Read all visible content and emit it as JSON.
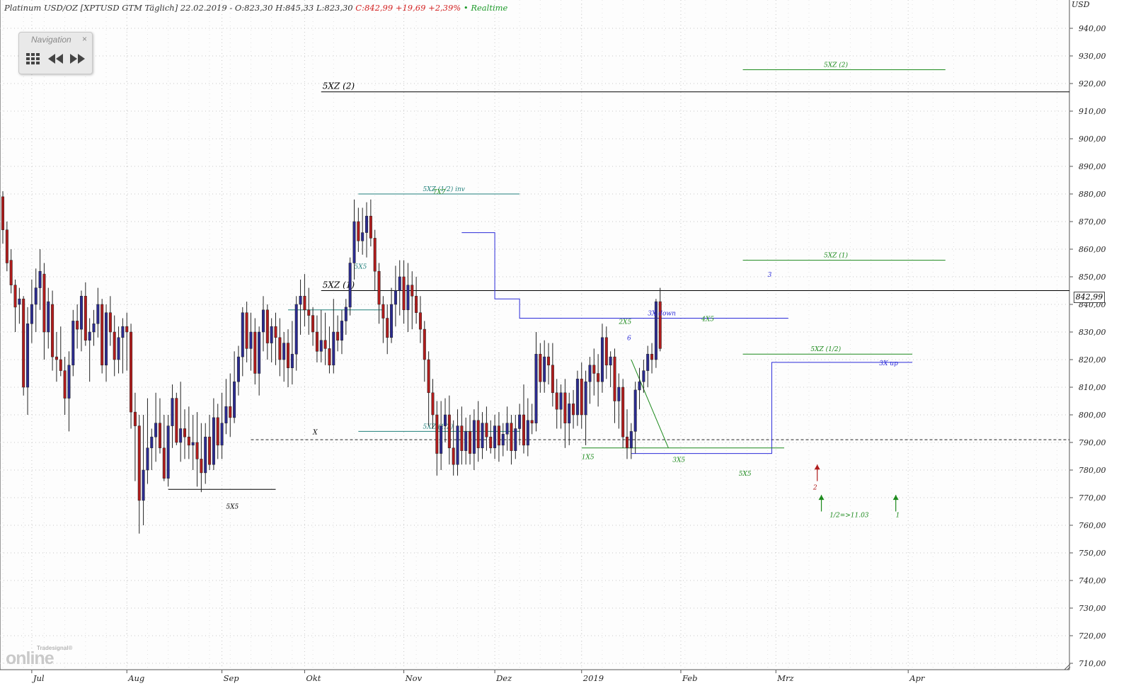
{
  "header": {
    "instrument": "Platinum USD/OZ [XPTUSD GTM Täglich] 22.02.2019 - O:823,30 H:845,33 L:823,30",
    "change": "C:842,99 +19,69 +2,39%",
    "realtime": "• Realtime"
  },
  "navigation": {
    "title": "Navigation",
    "close": "×",
    "buttons": [
      "grid-icon",
      "rewind-icon",
      "fast-forward-icon"
    ]
  },
  "logo": {
    "small": "Tradesignal®",
    "big": "online"
  },
  "colors": {
    "bull": "#2b2b8f",
    "bear": "#b01c1c",
    "green": "#1d8a1d",
    "teal": "#1f7f7a",
    "blue": "#2b2bd9",
    "black": "#000000",
    "grid": "#c8c8c8"
  },
  "chart_data": {
    "type": "candlestick",
    "currency_label": "USD",
    "last_price": "842,99",
    "y_ticks": [
      "710,00",
      "720,00",
      "730,00",
      "740,00",
      "750,00",
      "760,00",
      "770,00",
      "780,00",
      "790,00",
      "800,00",
      "810,00",
      "820,00",
      "830,00",
      "840,00",
      "850,00",
      "860,00",
      "870,00",
      "880,00",
      "890,00",
      "900,00",
      "910,00",
      "920,00",
      "930,00",
      "940,00"
    ],
    "ylim": [
      707,
      949
    ],
    "x_months": [
      {
        "label": "Jul",
        "index": 7
      },
      {
        "label": "Aug",
        "index": 30
      },
      {
        "label": "Sep",
        "index": 53
      },
      {
        "label": "Okt",
        "index": 73
      },
      {
        "label": "Nov",
        "index": 97
      },
      {
        "label": "Dez",
        "index": 119
      },
      {
        "label": "2019",
        "index": 140
      },
      {
        "label": "Feb",
        "index": 164
      },
      {
        "label": "Mrz",
        "index": 187
      },
      {
        "label": "Apr",
        "index": 219
      }
    ],
    "x_range": [
      0,
      258
    ],
    "candles": [
      [
        879,
        881,
        862,
        867
      ],
      [
        867,
        870,
        852,
        855
      ],
      [
        856,
        860,
        844,
        847
      ],
      [
        847,
        849,
        830,
        839
      ],
      [
        840,
        846,
        833,
        842
      ],
      [
        842,
        843,
        807,
        810
      ],
      [
        810,
        839,
        800,
        833
      ],
      [
        833,
        849,
        826,
        840
      ],
      [
        840,
        853,
        830,
        846
      ],
      [
        846,
        860,
        838,
        852
      ],
      [
        851,
        855,
        820,
        830
      ],
      [
        830,
        846,
        824,
        841
      ],
      [
        840,
        845,
        816,
        821
      ],
      [
        821,
        830,
        812,
        820
      ],
      [
        820,
        832,
        814,
        816
      ],
      [
        816,
        821,
        800,
        806
      ],
      [
        806,
        823,
        794,
        818
      ],
      [
        818,
        838,
        814,
        834
      ],
      [
        834,
        840,
        824,
        831
      ],
      [
        831,
        845,
        823,
        843
      ],
      [
        843,
        848,
        825,
        827
      ],
      [
        827,
        835,
        812,
        830
      ],
      [
        830,
        838,
        825,
        833
      ],
      [
        833,
        846,
        828,
        840
      ],
      [
        840,
        842,
        815,
        818
      ],
      [
        818,
        840,
        812,
        837
      ],
      [
        837,
        843,
        825,
        830
      ],
      [
        830,
        836,
        814,
        820
      ],
      [
        820,
        832,
        815,
        828
      ],
      [
        828,
        835,
        815,
        832
      ],
      [
        832,
        837,
        816,
        830
      ],
      [
        830,
        833,
        795,
        801
      ],
      [
        801,
        808,
        776,
        796
      ],
      [
        796,
        800,
        757,
        769
      ],
      [
        769,
        800,
        760,
        780
      ],
      [
        780,
        806,
        775,
        788
      ],
      [
        788,
        795,
        780,
        792
      ],
      [
        792,
        808,
        783,
        797
      ],
      [
        797,
        806,
        786,
        788
      ],
      [
        788,
        800,
        776,
        777
      ],
      [
        777,
        800,
        774,
        796
      ],
      [
        796,
        811,
        788,
        806
      ],
      [
        806,
        808,
        789,
        790
      ],
      [
        790,
        812,
        783,
        795
      ],
      [
        795,
        802,
        784,
        792
      ],
      [
        792,
        803,
        784,
        789
      ],
      [
        789,
        800,
        780,
        790
      ],
      [
        790,
        801,
        774,
        784
      ],
      [
        784,
        797,
        772,
        779
      ],
      [
        779,
        797,
        775,
        792
      ],
      [
        792,
        800,
        780,
        782
      ],
      [
        782,
        806,
        780,
        799
      ],
      [
        799,
        804,
        784,
        789
      ],
      [
        789,
        808,
        784,
        797
      ],
      [
        797,
        813,
        793,
        803
      ],
      [
        803,
        815,
        792,
        799
      ],
      [
        799,
        823,
        797,
        812
      ],
      [
        812,
        825,
        807,
        821
      ],
      [
        821,
        839,
        814,
        837
      ],
      [
        837,
        841,
        819,
        824
      ],
      [
        824,
        837,
        816,
        830
      ],
      [
        830,
        835,
        811,
        815
      ],
      [
        815,
        832,
        807,
        830
      ],
      [
        830,
        843,
        823,
        838
      ],
      [
        838,
        840,
        820,
        826
      ],
      [
        826,
        835,
        819,
        832
      ],
      [
        832,
        837,
        818,
        828
      ],
      [
        828,
        835,
        814,
        820
      ],
      [
        820,
        830,
        812,
        826
      ],
      [
        826,
        831,
        810,
        817
      ],
      [
        817,
        834,
        811,
        822
      ],
      [
        822,
        843,
        816,
        840
      ],
      [
        840,
        849,
        829,
        843
      ],
      [
        843,
        851,
        832,
        838
      ],
      [
        838,
        846,
        829,
        836
      ],
      [
        836,
        839,
        825,
        830
      ],
      [
        830,
        836,
        819,
        823
      ],
      [
        823,
        838,
        819,
        827
      ],
      [
        827,
        837,
        818,
        824
      ],
      [
        824,
        832,
        815,
        818
      ],
      [
        818,
        842,
        815,
        830
      ],
      [
        830,
        836,
        823,
        827
      ],
      [
        827,
        838,
        822,
        834
      ],
      [
        834,
        842,
        829,
        839
      ],
      [
        839,
        857,
        836,
        855
      ],
      [
        855,
        878,
        849,
        870
      ],
      [
        870,
        875,
        859,
        863
      ],
      [
        863,
        875,
        858,
        866
      ],
      [
        866,
        877,
        857,
        872
      ],
      [
        872,
        878,
        861,
        864
      ],
      [
        864,
        867,
        845,
        852
      ],
      [
        852,
        855,
        833,
        840
      ],
      [
        840,
        843,
        826,
        835
      ],
      [
        835,
        840,
        822,
        828
      ],
      [
        828,
        846,
        826,
        840
      ],
      [
        840,
        854,
        832,
        845
      ],
      [
        845,
        856,
        836,
        850
      ],
      [
        850,
        856,
        833,
        838
      ],
      [
        838,
        855,
        830,
        847
      ],
      [
        847,
        852,
        831,
        843
      ],
      [
        843,
        850,
        833,
        837
      ],
      [
        837,
        843,
        826,
        831
      ],
      [
        831,
        834,
        812,
        820
      ],
      [
        820,
        823,
        796,
        808
      ],
      [
        808,
        813,
        795,
        800
      ],
      [
        800,
        805,
        778,
        786
      ],
      [
        786,
        805,
        780,
        796
      ],
      [
        796,
        806,
        790,
        800
      ],
      [
        800,
        807,
        782,
        788
      ],
      [
        788,
        798,
        778,
        782
      ],
      [
        782,
        802,
        778,
        796
      ],
      [
        796,
        803,
        782,
        787
      ],
      [
        787,
        799,
        782,
        794
      ],
      [
        794,
        800,
        782,
        786
      ],
      [
        786,
        802,
        780,
        798
      ],
      [
        798,
        805,
        783,
        788
      ],
      [
        788,
        801,
        784,
        797
      ],
      [
        797,
        803,
        787,
        792
      ],
      [
        792,
        798,
        786,
        788
      ],
      [
        788,
        800,
        784,
        796
      ],
      [
        796,
        801,
        783,
        789
      ],
      [
        789,
        797,
        785,
        793
      ],
      [
        793,
        803,
        787,
        797
      ],
      [
        797,
        800,
        782,
        787
      ],
      [
        787,
        800,
        784,
        795
      ],
      [
        795,
        804,
        789,
        800
      ],
      [
        800,
        811,
        786,
        789
      ],
      [
        789,
        806,
        785,
        798
      ],
      [
        798,
        804,
        793,
        797
      ],
      [
        797,
        830,
        794,
        822
      ],
      [
        822,
        826,
        808,
        812
      ],
      [
        812,
        827,
        808,
        821
      ],
      [
        821,
        826,
        811,
        818
      ],
      [
        818,
        826,
        803,
        808
      ],
      [
        808,
        813,
        795,
        802
      ],
      [
        802,
        811,
        795,
        808
      ],
      [
        808,
        813,
        788,
        797
      ],
      [
        797,
        808,
        789,
        804
      ],
      [
        804,
        809,
        795,
        800
      ],
      [
        800,
        816,
        796,
        813
      ],
      [
        813,
        819,
        795,
        800
      ],
      [
        800,
        816,
        789,
        812
      ],
      [
        812,
        821,
        804,
        818
      ],
      [
        818,
        824,
        807,
        815
      ],
      [
        815,
        822,
        803,
        812
      ],
      [
        812,
        833,
        808,
        828
      ],
      [
        828,
        832,
        813,
        818
      ],
      [
        818,
        823,
        810,
        821
      ],
      [
        821,
        824,
        797,
        805
      ],
      [
        805,
        815,
        795,
        810
      ],
      [
        810,
        813,
        788,
        792
      ],
      [
        792,
        802,
        784,
        788
      ],
      [
        788,
        797,
        784,
        794
      ],
      [
        794,
        812,
        786,
        809
      ],
      [
        809,
        817,
        802,
        812
      ],
      [
        812,
        820,
        808,
        816
      ],
      [
        816,
        825,
        810,
        822
      ],
      [
        822,
        826,
        815,
        820
      ],
      [
        820,
        842,
        817,
        841
      ],
      [
        841,
        846,
        823,
        824
      ]
    ],
    "horizontal_levels": [
      {
        "label": "5XZ (2)",
        "y": 917,
        "x1": 77,
        "x2": 258,
        "color": "black"
      },
      {
        "label": "5XZ (2)",
        "y": 925,
        "x1": 179,
        "x2": 228,
        "color": "green"
      },
      {
        "label": "5XZ (1/2) inv",
        "y": 880,
        "x1": 86,
        "x2": 125,
        "color": "teal"
      },
      {
        "label": "5XZ (1)",
        "y": 845,
        "x1": 77,
        "x2": 258,
        "color": "black"
      },
      {
        "label": "5XZ (1)",
        "y": 856,
        "x1": 179,
        "x2": 228,
        "color": "green"
      },
      {
        "label": "5XZ (1/2)",
        "y": 794,
        "x1": 86,
        "x2": 125,
        "color": "teal"
      },
      {
        "label": "5XZ (1/2)",
        "y": 822,
        "x1": 179,
        "x2": 220,
        "color": "green"
      },
      {
        "label": "",
        "y": 791,
        "x1": 60,
        "x2": 258,
        "color": "dash"
      }
    ],
    "annotations": [
      {
        "text": "5X5",
        "x": 54,
        "y": 766,
        "color": "black"
      },
      {
        "text": "X",
        "x": 75,
        "y": 793,
        "color": "black"
      },
      {
        "text": "5X5",
        "x": 85,
        "y": 853,
        "color": "teal"
      },
      {
        "text": "7X7",
        "x": 104,
        "y": 880,
        "color": "green"
      },
      {
        "text": "1X5",
        "x": 140,
        "y": 784,
        "color": "green"
      },
      {
        "text": "2X5",
        "x": 149,
        "y": 833,
        "color": "green"
      },
      {
        "text": "6",
        "x": 151,
        "y": 827,
        "color": "blue"
      },
      {
        "text": "3X down",
        "x": 156,
        "y": 836,
        "color": "blue"
      },
      {
        "text": "4X5",
        "x": 169,
        "y": 834,
        "color": "green"
      },
      {
        "text": "3X5",
        "x": 162,
        "y": 783,
        "color": "green"
      },
      {
        "text": "5X5",
        "x": 178,
        "y": 778,
        "color": "green"
      },
      {
        "text": "3",
        "x": 185,
        "y": 850,
        "color": "blue"
      },
      {
        "text": "3X up",
        "x": 212,
        "y": 818,
        "color": "blue"
      },
      {
        "text": "2",
        "x": 196,
        "y": 773,
        "color": "red"
      },
      {
        "text": "1/2=>11.03",
        "x": 200,
        "y": 763,
        "color": "green"
      },
      {
        "text": "1",
        "x": 216,
        "y": 763,
        "color": "green"
      }
    ]
  }
}
